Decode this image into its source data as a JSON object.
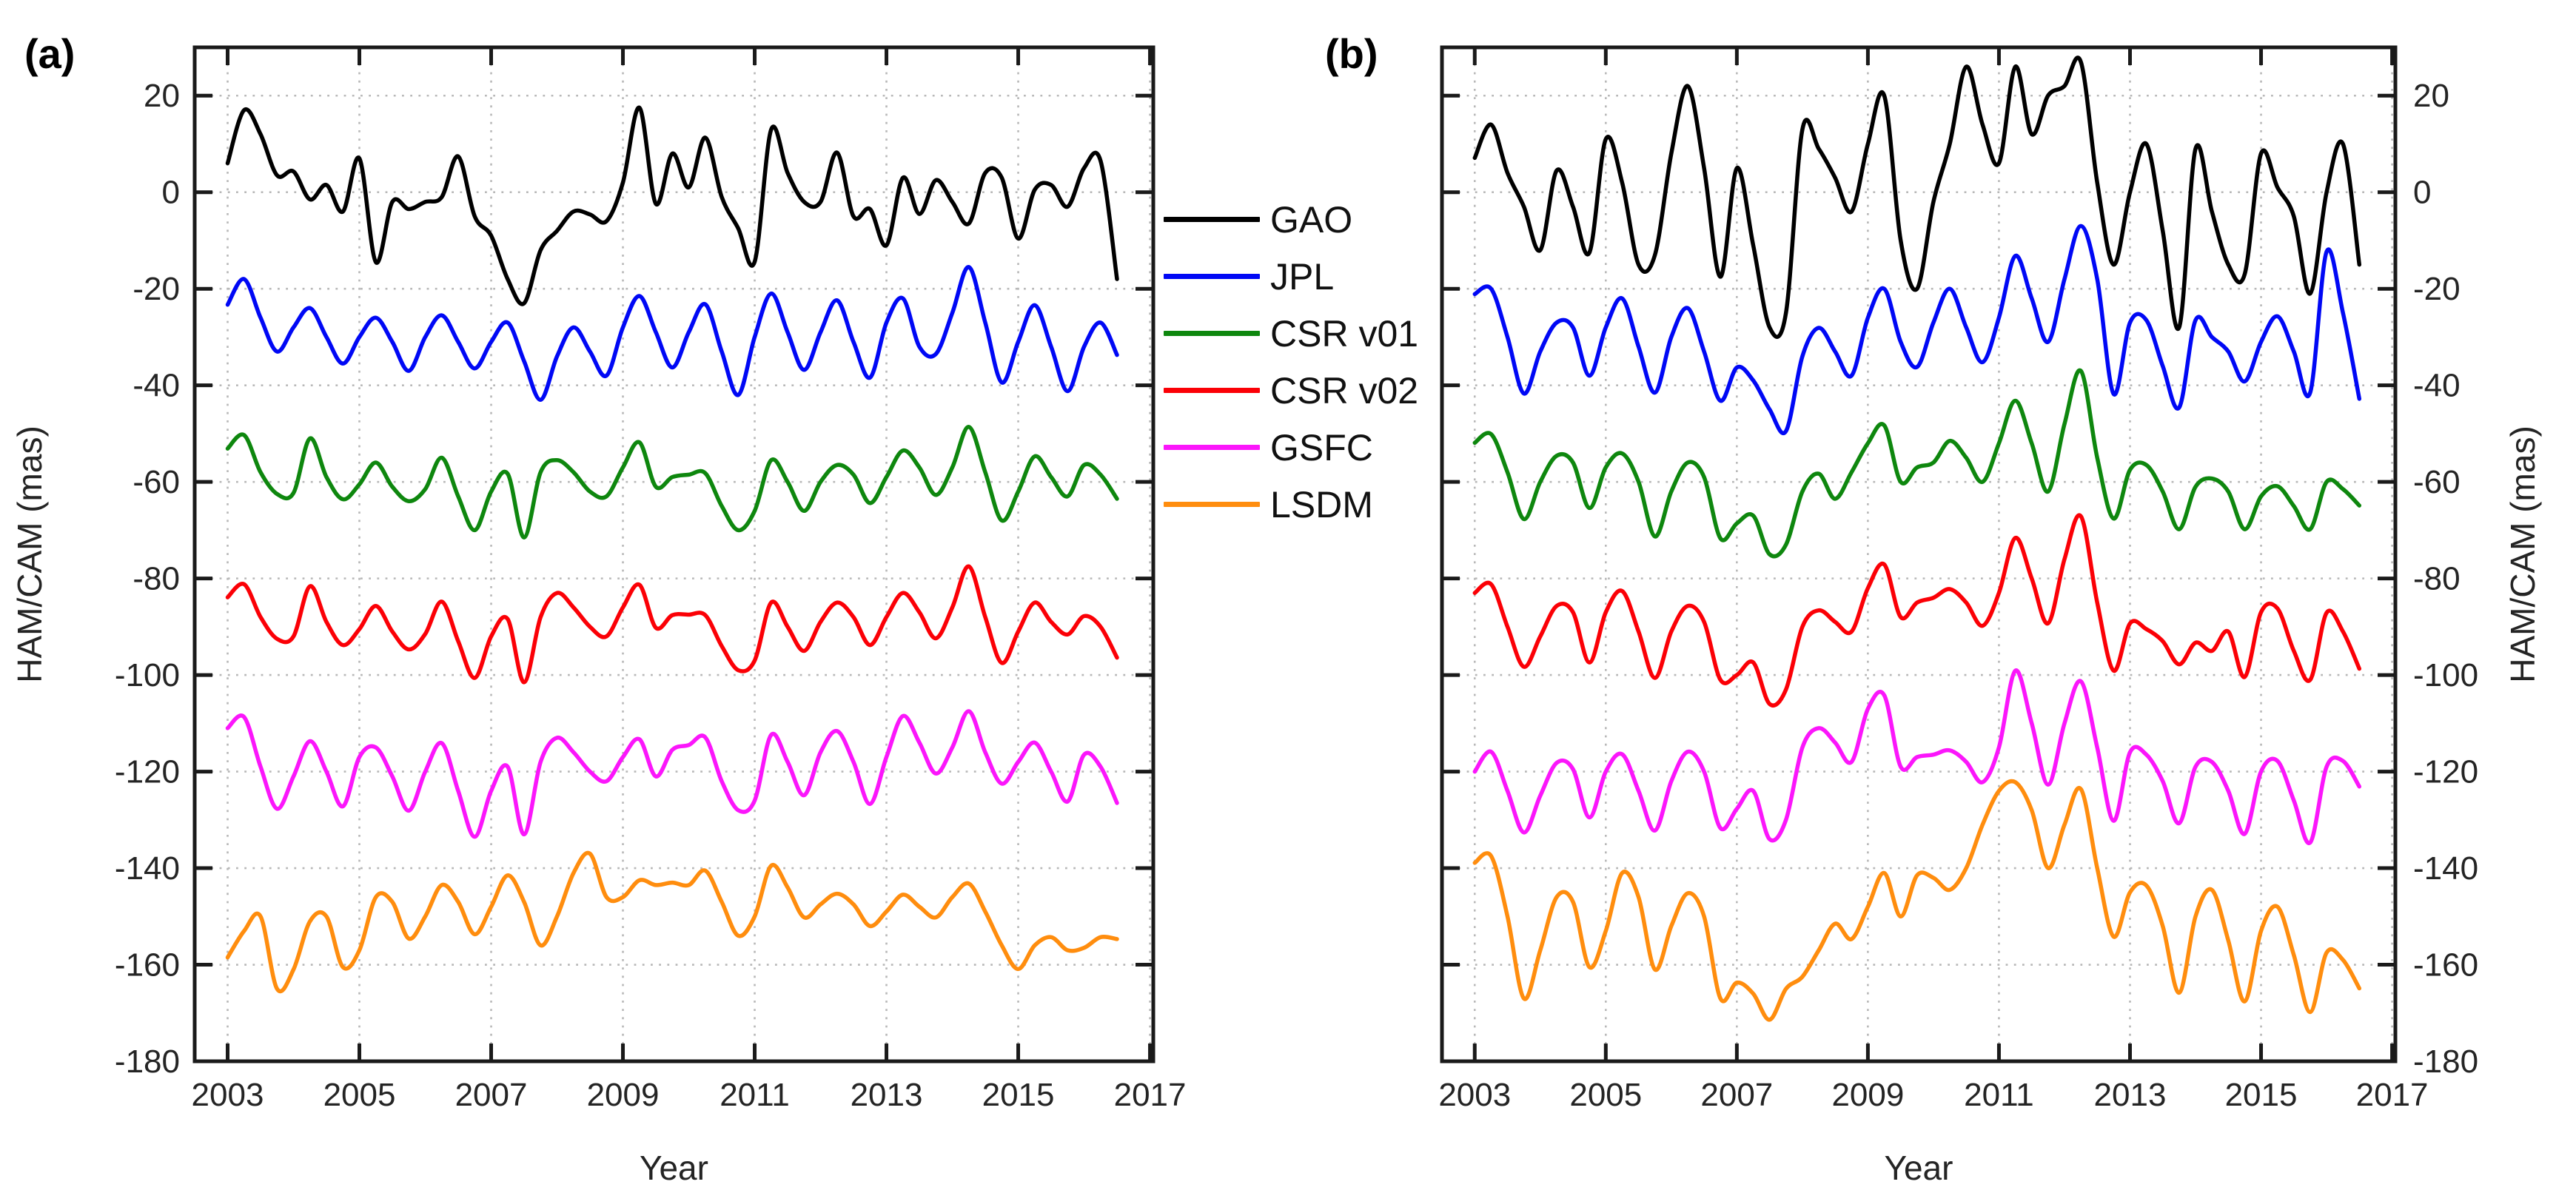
{
  "figure": {
    "panel_a_letter": "(a)",
    "panel_b_letter": "(b)",
    "xlabel": "Year",
    "ylabel_left": "HAM/CAM (mas)",
    "ylabel_right": "HAM/CAM (mas)",
    "axis_color": "#1a1a1a",
    "grid_color": "#b8b8b8",
    "text_color": "#242424"
  },
  "legend": {
    "items": [
      {
        "label": "GAO",
        "color": "#000000"
      },
      {
        "label": "JPL",
        "color": "#0008f5"
      },
      {
        "label": "CSR v01",
        "color": "#0e870e"
      },
      {
        "label": "CSR v02",
        "color": "#fb0006"
      },
      {
        "label": "GSFC",
        "color": "#fb16fb"
      },
      {
        "label": "LSDM",
        "color": "#ff8d0e"
      }
    ]
  },
  "chart_data": {
    "type": "line",
    "title": "",
    "xlabel": "Year",
    "ylabel": "HAM/CAM (mas)",
    "xlim": [
      2002.5,
      2017.05
    ],
    "ylim": [
      -180,
      30
    ],
    "xticks": [
      2003,
      2005,
      2007,
      2009,
      2011,
      2013,
      2015,
      2017
    ],
    "yticks": [
      20,
      0,
      -20,
      -40,
      -60,
      -80,
      -100,
      -120,
      -140,
      -160,
      -180
    ],
    "grid": "dotted",
    "legend_position": "between-panels",
    "x": [
      2003.0,
      2003.25,
      2003.5,
      2003.75,
      2004.0,
      2004.25,
      2004.5,
      2004.75,
      2005.0,
      2005.25,
      2005.5,
      2005.75,
      2006.0,
      2006.25,
      2006.5,
      2006.75,
      2007.0,
      2007.25,
      2007.5,
      2007.75,
      2008.0,
      2008.25,
      2008.5,
      2008.75,
      2009.0,
      2009.25,
      2009.5,
      2009.75,
      2010.0,
      2010.25,
      2010.5,
      2010.75,
      2011.0,
      2011.25,
      2011.5,
      2011.75,
      2012.0,
      2012.25,
      2012.5,
      2012.75,
      2013.0,
      2013.25,
      2013.5,
      2013.75,
      2014.0,
      2014.25,
      2014.5,
      2014.75,
      2015.0,
      2015.25,
      2015.5,
      2015.75,
      2016.0,
      2016.25,
      2016.5
    ],
    "panels": [
      {
        "id": "a",
        "label": "(a)",
        "series": [
          {
            "name": "GAO",
            "color": "#000000",
            "values": [
              6,
              17,
              12,
              3.5,
              4.3,
              -1.5,
              1.5,
              -4,
              7,
              -14.5,
              -2,
              -3.5,
              -2,
              -1,
              7.4,
              -5,
              -9,
              -18,
              -23,
              -12,
              -8,
              -4,
              -4.6,
              -6,
              2,
              17.5,
              -2.4,
              8,
              1,
              11.3,
              -1,
              -7.5,
              -14.4,
              13,
              4,
              -2,
              -2,
              8.2,
              -5,
              -3.5,
              -11,
              3,
              -4.5,
              2.5,
              -2,
              -6.5,
              4,
              3,
              -9.6,
              0.5,
              1.5,
              -3,
              5,
              6.5,
              -18
            ]
          },
          {
            "name": "JPL",
            "color": "#0008f5",
            "values": [
              -23.3,
              -18,
              -26,
              -33,
              -28,
              -24,
              -30,
              -35.5,
              -30,
              -26,
              -31,
              -37,
              -30,
              -25.5,
              -31,
              -36.5,
              -31,
              -27,
              -35,
              -43,
              -34,
              -28,
              -33,
              -38,
              -28,
              -21.5,
              -29,
              -36.3,
              -29,
              -23.2,
              -33,
              -42,
              -30,
              -21,
              -29,
              -36.8,
              -29,
              -22.4,
              -31,
              -38.4,
              -27,
              -22,
              -32,
              -33.5,
              -25,
              -15.5,
              -27,
              -39.4,
              -31,
              -23.4,
              -32,
              -41.2,
              -32,
              -27,
              -33.7
            ]
          },
          {
            "name": "CSR v01",
            "color": "#0e870e",
            "values": [
              -53.1,
              -50.3,
              -58,
              -62.5,
              -62.3,
              -51,
              -59,
              -63.6,
              -60.5,
              -56,
              -61,
              -64,
              -61.5,
              -55,
              -63,
              -70,
              -62,
              -58.3,
              -71.5,
              -58,
              -55.5,
              -58,
              -62,
              -63,
              -57,
              -51.8,
              -61,
              -59,
              -58.5,
              -58.2,
              -65,
              -70,
              -66,
              -55.5,
              -60,
              -66,
              -60,
              -56.5,
              -58.5,
              -64.4,
              -59,
              -53.5,
              -57,
              -62.7,
              -57,
              -48.6,
              -58,
              -68,
              -62,
              -54.7,
              -59,
              -63,
              -56.5,
              -58.5,
              -63.5
            ]
          },
          {
            "name": "CSR v02",
            "color": "#fb0006",
            "values": [
              -83.9,
              -81.2,
              -88,
              -92.5,
              -92,
              -81.6,
              -89,
              -93.8,
              -90.5,
              -85.7,
              -91,
              -94.7,
              -91.5,
              -84.8,
              -93,
              -100.6,
              -92,
              -88.4,
              -101.5,
              -88,
              -83,
              -86,
              -90,
              -92,
              -86,
              -81.3,
              -90.2,
              -87.6,
              -87.5,
              -87.6,
              -94,
              -99,
              -97,
              -85,
              -90,
              -95,
              -89,
              -85,
              -88,
              -93.8,
              -88,
              -83,
              -87,
              -92.4,
              -86,
              -77.5,
              -88,
              -97.5,
              -91,
              -85,
              -89,
              -91.6,
              -87.8,
              -90,
              -96.4
            ]
          },
          {
            "name": "GSFC",
            "color": "#fb16fb",
            "values": [
              -111,
              -108.7,
              -119,
              -127.7,
              -121,
              -113.7,
              -120,
              -127.2,
              -117,
              -115,
              -121,
              -128.1,
              -120,
              -114.1,
              -124,
              -133.5,
              -124,
              -119,
              -133,
              -118,
              -113,
              -116,
              -120,
              -122,
              -117,
              -113.3,
              -121,
              -115.5,
              -114.5,
              -112.9,
              -122,
              -128,
              -126,
              -112.4,
              -118,
              -124.9,
              -116,
              -111.6,
              -118,
              -126.7,
              -117,
              -108.5,
              -114,
              -120.4,
              -115,
              -107.5,
              -116,
              -122.5,
              -118,
              -114,
              -120,
              -126.2,
              -116.5,
              -119,
              -126.5
            ]
          },
          {
            "name": "LSDM",
            "color": "#ff8d0e",
            "values": [
              -158.5,
              -153,
              -150,
              -165,
              -161,
              -151,
              -150,
              -160.5,
              -157,
              -146,
              -147,
              -154.6,
              -150,
              -143.5,
              -147,
              -153.7,
              -148,
              -141.5,
              -147,
              -156,
              -150,
              -141,
              -137,
              -146,
              -146,
              -142.5,
              -143.5,
              -143,
              -143.5,
              -140.5,
              -147,
              -154,
              -150,
              -139.5,
              -144,
              -150.2,
              -147.5,
              -145.3,
              -147.5,
              -152,
              -149,
              -145.5,
              -148,
              -150.2,
              -146,
              -143.2,
              -149,
              -156,
              -160.9,
              -156,
              -154.3,
              -157,
              -156.5,
              -154.3,
              -154.7
            ]
          }
        ]
      },
      {
        "id": "b",
        "label": "(b)",
        "series": [
          {
            "name": "GAO",
            "color": "#000000",
            "values": [
              7.1,
              14,
              4,
              -3,
              -12,
              4.5,
              -3,
              -12.5,
              11,
              2,
              -15,
              -13,
              8,
              22,
              5,
              -17.5,
              5,
              -11,
              -28,
              -25,
              13,
              9,
              3,
              -4,
              10,
              20,
              -10,
              -20,
              -2,
              10,
              26,
              14,
              6,
              26,
              12,
              20,
              22,
              27,
              2,
              -15,
              0,
              10,
              -8,
              -28,
              9,
              -4,
              -15,
              -17,
              8,
              1,
              -5,
              -21,
              0,
              10,
              -15
            ]
          },
          {
            "name": "JPL",
            "color": "#0008f5",
            "values": [
              -21.1,
              -20,
              -30,
              -41.7,
              -33,
              -27,
              -28,
              -38,
              -28,
              -22,
              -32,
              -41.5,
              -30,
              -24,
              -33,
              -43.2,
              -36.3,
              -39,
              -45,
              -49.5,
              -34,
              -28.1,
              -33,
              -38,
              -26,
              -20,
              -31,
              -36.2,
              -27,
              -20,
              -28,
              -35.2,
              -26,
              -13.2,
              -22,
              -31,
              -18,
              -7,
              -18,
              -41.8,
              -27,
              -26.5,
              -36,
              -44.6,
              -26.5,
              -30,
              -33,
              -39.2,
              -31,
              -25.7,
              -33,
              -41.5,
              -12.3,
              -25,
              -42.8
            ]
          },
          {
            "name": "CSR v01",
            "color": "#0e870e",
            "values": [
              -51.9,
              -50.1,
              -58,
              -67.7,
              -60,
              -54.6,
              -56,
              -65.4,
              -57,
              -54.1,
              -60,
              -71.3,
              -62,
              -56,
              -59,
              -71.7,
              -68.6,
              -67,
              -75,
              -73,
              -62,
              -58.3,
              -63.5,
              -58,
              -52,
              -48.3,
              -60,
              -57,
              -56,
              -51.5,
              -55,
              -60,
              -52,
              -43.2,
              -52,
              -62,
              -48,
              -37,
              -55,
              -67.6,
              -57.5,
              -56.5,
              -62,
              -69.8,
              -61,
              -59.3,
              -62,
              -69.8,
              -63,
              -60.9,
              -65,
              -69.8,
              -60,
              -61.5,
              -64.9
            ]
          },
          {
            "name": "CSR v02",
            "color": "#fb0006",
            "values": [
              -83,
              -81.2,
              -90,
              -98.3,
              -92,
              -85.7,
              -87,
              -97.4,
              -87,
              -82.6,
              -91,
              -100.6,
              -91,
              -85.7,
              -89,
              -101,
              -100,
              -97.4,
              -106,
              -103,
              -90,
              -86.6,
              -89,
              -91,
              -82,
              -77.1,
              -88,
              -85,
              -84,
              -82.2,
              -85,
              -89.8,
              -83,
              -71.6,
              -80,
              -89.3,
              -76,
              -67.1,
              -85,
              -99.1,
              -89.3,
              -90.5,
              -93,
              -97.8,
              -93.3,
              -95,
              -91,
              -100.4,
              -87,
              -86.2,
              -95,
              -101,
              -87.1,
              -91,
              -98.7
            ]
          },
          {
            "name": "GSFC",
            "color": "#fb16fb",
            "values": [
              -120,
              -115.9,
              -124,
              -132.6,
              -125,
              -118.2,
              -119.5,
              -129.5,
              -120,
              -116.4,
              -124,
              -132.2,
              -122,
              -115.9,
              -120,
              -131.7,
              -127.7,
              -124,
              -134,
              -130,
              -115,
              -111,
              -114,
              -118,
              -107,
              -104.2,
              -119,
              -117,
              -116.5,
              -115.6,
              -118,
              -122.2,
              -115,
              -99.1,
              -110,
              -122.7,
              -110,
              -101.3,
              -115,
              -130.2,
              -116,
              -116.5,
              -122,
              -130.7,
              -119,
              -118,
              -124,
              -132.9,
              -120,
              -117.8,
              -126,
              -134.7,
              -119,
              -117.8,
              -123.1
            ]
          },
          {
            "name": "LSDM",
            "color": "#ff8d0e",
            "values": [
              -138.9,
              -137.5,
              -150,
              -167,
              -157,
              -146,
              -147,
              -160.5,
              -153,
              -141,
              -146,
              -161,
              -152,
              -145.2,
              -150,
              -167,
              -163.7,
              -166,
              -171.4,
              -165,
              -162.5,
              -157,
              -151.5,
              -154.7,
              -148,
              -141,
              -150,
              -141.5,
              -142,
              -144.5,
              -140,
              -131,
              -124,
              -122.2,
              -128,
              -140,
              -131,
              -123.6,
              -140,
              -154.2,
              -145,
              -143.6,
              -152,
              -165.8,
              -150,
              -144.5,
              -155,
              -167.6,
              -153,
              -148,
              -158,
              -169.8,
              -157.5,
              -159,
              -164.9
            ]
          }
        ]
      }
    ]
  }
}
